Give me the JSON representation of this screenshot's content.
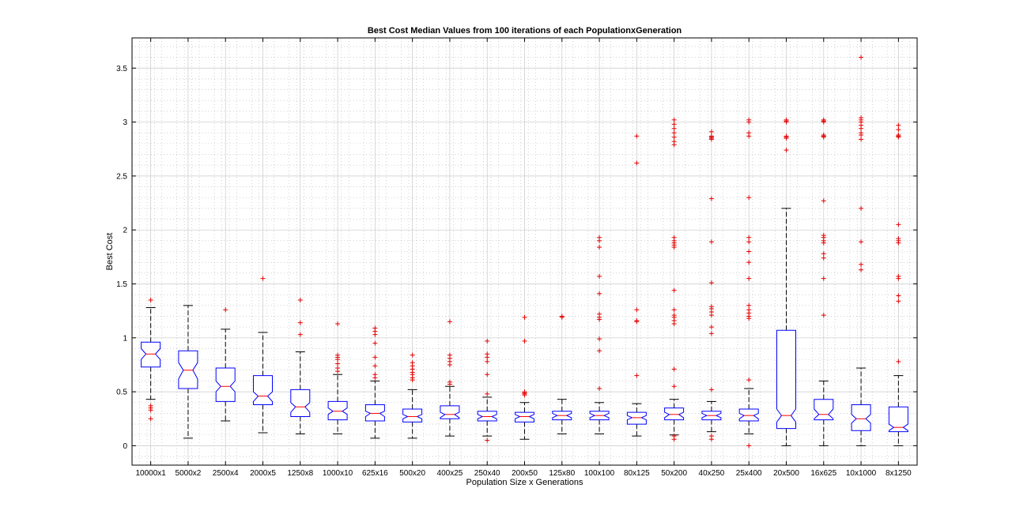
{
  "chart_data": {
    "type": "boxplot",
    "title": "Best Cost Median Values from 100 iterations of each PopulationxGeneration",
    "xlabel": "Population Size x Generations",
    "ylabel": "Best Cost",
    "ylim": [
      -0.18,
      3.78
    ],
    "yticks": [
      0,
      0.5,
      1,
      1.5,
      2,
      2.5,
      3,
      3.5
    ],
    "ytick_labels": [
      "0",
      "0.5",
      "1",
      "1.5",
      "2",
      "2.5",
      "3",
      "3.5"
    ],
    "grid": true,
    "colors": {
      "box": "#0000ff",
      "median": "#ff0000",
      "whisker": "#000000",
      "outlier": "#e00000",
      "grid": "#c8c8c8"
    },
    "categories": [
      "10000x1",
      "5000x2",
      "2500x4",
      "2000x5",
      "1250x8",
      "1000x10",
      "625x16",
      "500x20",
      "400x25",
      "250x40",
      "200x50",
      "125x80",
      "100x100",
      "80x125",
      "50x200",
      "40x250",
      "25x400",
      "20x500",
      "16x625",
      "10x1000",
      "8x1250"
    ],
    "boxes": [
      {
        "q1": 0.73,
        "median": 0.85,
        "q3": 0.96,
        "notch_low": 0.8,
        "notch_high": 0.9,
        "whisker_low": 0.43,
        "whisker_high": 1.28,
        "outliers": [
          1.35,
          0.37,
          0.35,
          0.33,
          0.25
        ]
      },
      {
        "q1": 0.53,
        "median": 0.7,
        "q3": 0.88,
        "notch_low": 0.62,
        "notch_high": 0.77,
        "whisker_low": 0.07,
        "whisker_high": 1.3,
        "outliers": []
      },
      {
        "q1": 0.41,
        "median": 0.55,
        "q3": 0.72,
        "notch_low": 0.5,
        "notch_high": 0.6,
        "whisker_low": 0.23,
        "whisker_high": 1.08,
        "outliers": [
          1.26
        ]
      },
      {
        "q1": 0.38,
        "median": 0.46,
        "q3": 0.65,
        "notch_low": 0.41,
        "notch_high": 0.5,
        "whisker_low": 0.12,
        "whisker_high": 1.05,
        "outliers": [
          1.55
        ]
      },
      {
        "q1": 0.27,
        "median": 0.36,
        "q3": 0.52,
        "notch_low": 0.31,
        "notch_high": 0.4,
        "whisker_low": 0.11,
        "whisker_high": 0.87,
        "outliers": [
          1.35,
          1.14,
          1.03
        ]
      },
      {
        "q1": 0.24,
        "median": 0.32,
        "q3": 0.41,
        "notch_low": 0.29,
        "notch_high": 0.35,
        "whisker_low": 0.11,
        "whisker_high": 0.66,
        "outliers": [
          1.13,
          0.84,
          0.82,
          0.8,
          0.76,
          0.72,
          0.69
        ]
      },
      {
        "q1": 0.23,
        "median": 0.3,
        "q3": 0.38,
        "notch_low": 0.27,
        "notch_high": 0.32,
        "whisker_low": 0.07,
        "whisker_high": 0.6,
        "outliers": [
          1.09,
          1.06,
          1.03,
          0.95,
          0.82,
          0.74,
          0.66,
          0.63
        ]
      },
      {
        "q1": 0.22,
        "median": 0.27,
        "q3": 0.34,
        "notch_low": 0.25,
        "notch_high": 0.29,
        "whisker_low": 0.07,
        "whisker_high": 0.52,
        "outliers": [
          0.84,
          0.77,
          0.74,
          0.71,
          0.68,
          0.66,
          0.63,
          0.61
        ]
      },
      {
        "q1": 0.25,
        "median": 0.29,
        "q3": 0.37,
        "notch_low": 0.26,
        "notch_high": 0.31,
        "whisker_low": 0.09,
        "whisker_high": 0.55,
        "outliers": [
          1.15,
          0.84,
          0.81,
          0.78,
          0.75,
          0.59,
          0.57
        ]
      },
      {
        "q1": 0.23,
        "median": 0.27,
        "q3": 0.32,
        "notch_low": 0.25,
        "notch_high": 0.29,
        "whisker_low": 0.09,
        "whisker_high": 0.45,
        "outliers": [
          0.97,
          0.85,
          0.82,
          0.78,
          0.66,
          0.48,
          0.05
        ]
      },
      {
        "q1": 0.22,
        "median": 0.27,
        "q3": 0.31,
        "notch_low": 0.25,
        "notch_high": 0.29,
        "whisker_low": 0.06,
        "whisker_high": 0.4,
        "outliers": [
          1.19,
          0.97,
          0.5,
          0.49,
          0.48,
          0.47
        ]
      },
      {
        "q1": 0.24,
        "median": 0.28,
        "q3": 0.32,
        "notch_low": 0.26,
        "notch_high": 0.3,
        "whisker_low": 0.11,
        "whisker_high": 0.43,
        "outliers": [
          1.2,
          1.19
        ]
      },
      {
        "q1": 0.24,
        "median": 0.28,
        "q3": 0.32,
        "notch_low": 0.26,
        "notch_high": 0.3,
        "whisker_low": 0.11,
        "whisker_high": 0.4,
        "outliers": [
          1.93,
          1.9,
          1.84,
          1.57,
          1.41,
          1.22,
          1.19,
          1.17,
          0.99,
          0.88,
          0.53
        ]
      },
      {
        "q1": 0.2,
        "median": 0.26,
        "q3": 0.31,
        "notch_low": 0.24,
        "notch_high": 0.28,
        "whisker_low": 0.09,
        "whisker_high": 0.39,
        "outliers": [
          2.87,
          2.62,
          1.26,
          1.16,
          1.15,
          0.65
        ]
      },
      {
        "q1": 0.24,
        "median": 0.29,
        "q3": 0.35,
        "notch_low": 0.26,
        "notch_high": 0.31,
        "whisker_low": 0.1,
        "whisker_high": 0.43,
        "outliers": [
          3.02,
          2.98,
          2.94,
          2.9,
          2.86,
          2.82,
          2.79,
          1.93,
          1.9,
          1.88,
          1.86,
          1.84,
          1.44,
          1.26,
          1.21,
          1.19,
          1.16,
          1.13,
          0.71,
          0.55,
          0.09,
          0.06
        ]
      },
      {
        "q1": 0.24,
        "median": 0.28,
        "q3": 0.32,
        "notch_low": 0.26,
        "notch_high": 0.3,
        "whisker_low": 0.13,
        "whisker_high": 0.41,
        "outliers": [
          2.91,
          2.87,
          2.86,
          2.85,
          2.84,
          2.29,
          1.89,
          1.51,
          1.29,
          1.27,
          1.24,
          1.21,
          1.1,
          1.04,
          0.52,
          0.09,
          0.06
        ]
      },
      {
        "q1": 0.23,
        "median": 0.28,
        "q3": 0.34,
        "notch_low": 0.25,
        "notch_high": 0.3,
        "whisker_low": 0.11,
        "whisker_high": 0.53,
        "outliers": [
          3.02,
          3.0,
          2.9,
          2.87,
          2.3,
          1.93,
          1.89,
          1.8,
          1.7,
          1.55,
          1.3,
          1.26,
          1.23,
          1.2,
          1.18,
          0.61,
          0.0
        ]
      },
      {
        "q1": 0.16,
        "median": 0.28,
        "q3": 1.07,
        "notch_low": 0.22,
        "notch_high": 0.34,
        "whisker_low": 0.0,
        "whisker_high": 2.2,
        "outliers": [
          3.02,
          3.01,
          3.0,
          2.87,
          2.86,
          2.85,
          2.74
        ]
      },
      {
        "q1": 0.24,
        "median": 0.29,
        "q3": 0.43,
        "notch_low": 0.25,
        "notch_high": 0.34,
        "whisker_low": 0.0,
        "whisker_high": 0.6,
        "outliers": [
          3.02,
          3.01,
          3.0,
          2.88,
          2.87,
          2.86,
          2.27,
          1.95,
          1.93,
          1.9,
          1.88,
          1.78,
          1.74,
          1.55,
          1.21
        ]
      },
      {
        "q1": 0.14,
        "median": 0.25,
        "q3": 0.38,
        "notch_low": 0.21,
        "notch_high": 0.29,
        "whisker_low": 0.0,
        "whisker_high": 0.72,
        "outliers": [
          3.6,
          3.04,
          3.02,
          3.0,
          2.97,
          2.94,
          2.9,
          2.88,
          2.84,
          2.2,
          1.89,
          1.68,
          1.63
        ]
      },
      {
        "q1": 0.13,
        "median": 0.17,
        "q3": 0.36,
        "notch_low": 0.14,
        "notch_high": 0.2,
        "whisker_low": 0.0,
        "whisker_high": 0.65,
        "outliers": [
          2.97,
          2.93,
          2.88,
          2.87,
          2.86,
          2.05,
          1.92,
          1.9,
          1.88,
          1.57,
          1.55,
          1.39,
          1.34,
          0.78
        ]
      }
    ]
  }
}
